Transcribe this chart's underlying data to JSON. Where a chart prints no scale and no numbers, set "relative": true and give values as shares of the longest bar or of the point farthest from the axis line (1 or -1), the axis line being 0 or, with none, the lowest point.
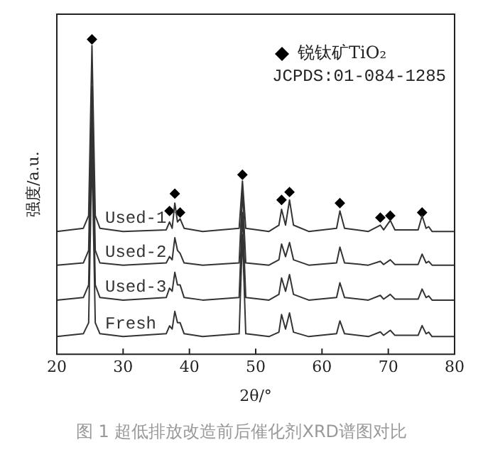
{
  "chart_data": {
    "type": "line",
    "xlabel": "2θ/°",
    "ylabel": "强度/a.u.",
    "relative": true,
    "xlim": [
      20,
      80
    ],
    "xticks": [
      20,
      30,
      40,
      50,
      60,
      70,
      80
    ],
    "grid": false,
    "legend": "top right",
    "marker": "none",
    "line_style": "solid",
    "x": [
      20,
      24,
      24.8,
      25.3,
      25.8,
      26.5,
      30,
      36.5,
      37,
      37.4,
      37.8,
      38.2,
      38.6,
      39.2,
      42,
      47.5,
      48,
      48.5,
      52,
      53.5,
      53.9,
      54.5,
      55.1,
      55.7,
      58,
      62.2,
      62.7,
      63.4,
      67,
      68.8,
      69.3,
      70.3,
      71,
      74.5,
      75.1,
      75.7,
      76.1,
      76.6,
      80
    ],
    "series": [
      {
        "name": "Used-1",
        "color": "#333333",
        "values": [
          0.39,
          0.4,
          0.44,
          0.98,
          0.44,
          0.4,
          0.39,
          0.395,
          0.42,
          0.4,
          0.48,
          0.42,
          0.43,
          0.4,
          0.39,
          0.4,
          0.55,
          0.4,
          0.39,
          0.41,
          0.46,
          0.41,
          0.49,
          0.41,
          0.39,
          0.4,
          0.455,
          0.4,
          0.39,
          0.41,
          0.395,
          0.425,
          0.395,
          0.395,
          0.44,
          0.4,
          0.405,
          0.39,
          0.39
        ]
      },
      {
        "name": "Used-2",
        "color": "#333333",
        "values": [
          0.283,
          0.29,
          0.33,
          0.85,
          0.33,
          0.29,
          0.283,
          0.29,
          0.31,
          0.3,
          0.37,
          0.33,
          0.32,
          0.29,
          0.283,
          0.29,
          0.52,
          0.29,
          0.283,
          0.3,
          0.35,
          0.31,
          0.355,
          0.3,
          0.283,
          0.29,
          0.34,
          0.29,
          0.283,
          0.295,
          0.285,
          0.3,
          0.285,
          0.285,
          0.318,
          0.29,
          0.295,
          0.283,
          0.283
        ]
      },
      {
        "name": "Used-3",
        "color": "#333333",
        "values": [
          0.172,
          0.18,
          0.22,
          0.75,
          0.22,
          0.18,
          0.172,
          0.18,
          0.21,
          0.2,
          0.26,
          0.22,
          0.22,
          0.18,
          0.172,
          0.18,
          0.45,
          0.18,
          0.172,
          0.19,
          0.242,
          0.2,
          0.253,
          0.19,
          0.172,
          0.18,
          0.227,
          0.18,
          0.172,
          0.187,
          0.175,
          0.19,
          0.175,
          0.175,
          0.207,
          0.18,
          0.185,
          0.172,
          0.172
        ]
      },
      {
        "name": "Fresh",
        "color": "#333333",
        "values": [
          0.056,
          0.065,
          0.1,
          0.65,
          0.1,
          0.065,
          0.056,
          0.065,
          0.09,
          0.08,
          0.136,
          0.1,
          0.1,
          0.065,
          0.056,
          0.065,
          0.38,
          0.065,
          0.056,
          0.07,
          0.126,
          0.08,
          0.131,
          0.07,
          0.056,
          0.065,
          0.106,
          0.065,
          0.056,
          0.071,
          0.06,
          0.076,
          0.06,
          0.06,
          0.091,
          0.065,
          0.07,
          0.056,
          0.056
        ]
      },
      {
        "name": "锐钛矿TiO₂",
        "type": "scatter",
        "marker": "diamond",
        "color": "#000000",
        "x": [
          25.3,
          37,
          37.8,
          38.6,
          48,
          53.9,
          55.1,
          62.7,
          68.8,
          70.3,
          75.1
        ],
        "values": [
          1,
          0.455,
          0.51,
          0.45,
          0.57,
          0.49,
          0.515,
          0.48,
          0.434,
          0.44,
          0.45
        ]
      }
    ],
    "annotations": [
      "JCPDS:01-084-1285",
      "图 1 超低排放改造前后催化剂XRD谱图对比"
    ]
  }
}
